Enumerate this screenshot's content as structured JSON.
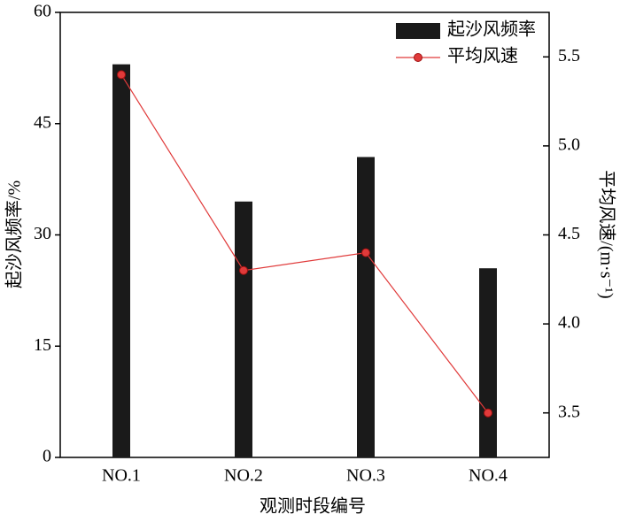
{
  "chart_data": {
    "type": "bar",
    "categories": [
      "NO.1",
      "NO.2",
      "NO.3",
      "NO.4"
    ],
    "series": [
      {
        "name": "起沙风频率",
        "type": "bar",
        "color": "#1a1a1a",
        "values": [
          53,
          34.5,
          40.5,
          25.5
        ]
      },
      {
        "name": "平均风速",
        "type": "line",
        "color": "#e03a3a",
        "axis": "y2",
        "values": [
          5.4,
          4.3,
          4.4,
          3.5
        ]
      }
    ],
    "xlabel": "观测时段编号",
    "ylabel": "起沙风频率/%",
    "y2label": "平均风速/(m·s⁻¹)",
    "ylim": [
      0,
      60
    ],
    "yticks": [
      0,
      15,
      30,
      45,
      60
    ],
    "y2lim": [
      3.25,
      5.75
    ],
    "y2ticks": [
      3.5,
      {
        "value": 4,
        "label": "4.0"
      },
      4.5,
      {
        "value": 5,
        "label": "5.0"
      },
      5.5
    ],
    "legend": "upper right"
  }
}
